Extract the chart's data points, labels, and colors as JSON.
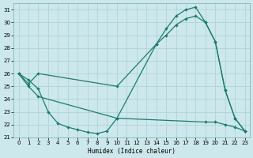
{
  "xlabel": "Humidex (Indice chaleur)",
  "xlim": [
    -0.5,
    23.5
  ],
  "ylim": [
    21,
    31.5
  ],
  "yticks": [
    21,
    22,
    23,
    24,
    25,
    26,
    27,
    28,
    29,
    30,
    31
  ],
  "xticks": [
    0,
    1,
    2,
    3,
    4,
    5,
    6,
    7,
    8,
    9,
    10,
    11,
    12,
    13,
    14,
    15,
    16,
    17,
    18,
    19,
    20,
    21,
    22,
    23
  ],
  "bg_color": "#cce8ec",
  "line_color": "#1e7b70",
  "grid_color": "#aacfd4",
  "curve1_x": [
    0,
    1,
    2,
    10,
    14,
    15,
    16,
    17,
    18,
    19,
    20,
    21,
    22,
    23
  ],
  "curve1_y": [
    26.0,
    25.0,
    24.2,
    22.5,
    28.3,
    29.5,
    30.5,
    31.0,
    31.2,
    30.0,
    28.5,
    24.7,
    22.5,
    21.5
  ],
  "curve2_x": [
    0,
    1,
    2,
    10,
    14,
    15,
    16,
    17,
    18,
    19,
    20,
    21,
    22,
    23
  ],
  "curve2_y": [
    26.0,
    25.2,
    26.0,
    25.0,
    28.3,
    29.0,
    29.8,
    30.3,
    30.5,
    30.0,
    28.5,
    24.7,
    22.5,
    21.5
  ],
  "curve3_x": [
    0,
    1,
    2,
    3,
    4,
    5,
    6,
    7,
    8,
    9,
    10,
    19,
    20,
    21,
    22,
    23
  ],
  "curve3_y": [
    26.0,
    25.5,
    24.8,
    23.0,
    22.1,
    21.8,
    21.6,
    21.4,
    21.3,
    21.5,
    22.5,
    22.2,
    22.2,
    22.0,
    21.8,
    21.5
  ]
}
